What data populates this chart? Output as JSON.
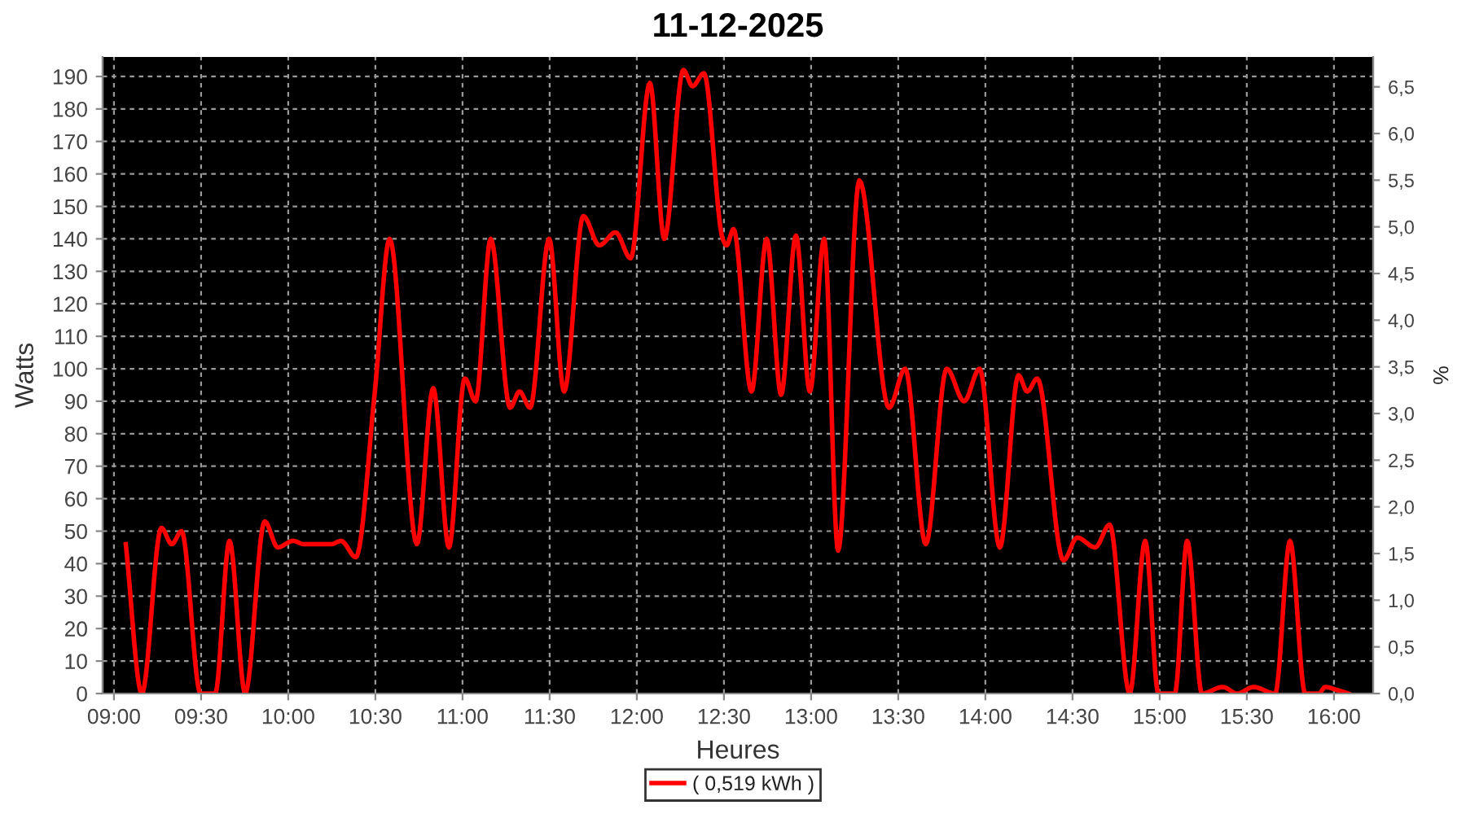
{
  "chart_data": {
    "type": "line",
    "title": "11-12-2025",
    "xlabel": "Heures",
    "ylabel": "Watts",
    "y2label": "%",
    "x": [
      9.068,
      9.16,
      9.272,
      9.332,
      9.388,
      9.497,
      9.581,
      9.663,
      9.753,
      9.865,
      9.94,
      10.028,
      10.09,
      10.247,
      10.303,
      10.388,
      10.497,
      10.582,
      10.738,
      10.832,
      10.922,
      11.013,
      11.075,
      11.162,
      11.273,
      11.327,
      11.388,
      11.497,
      11.583,
      11.693,
      11.785,
      11.878,
      11.965,
      12.075,
      12.158,
      12.267,
      12.32,
      12.385,
      12.493,
      12.515,
      12.555,
      12.658,
      12.745,
      12.828,
      12.913,
      12.993,
      13.075,
      13.155,
      13.277,
      13.447,
      13.54,
      13.658,
      13.778,
      13.878,
      13.967,
      14.083,
      14.19,
      14.24,
      14.298,
      14.448,
      14.527,
      14.63,
      14.713,
      14.828,
      14.917,
      14.993,
      15.087,
      15.158,
      15.243,
      15.362,
      15.445,
      15.538,
      15.663,
      15.748,
      15.835,
      15.913,
      15.95,
      16.022,
      16.083
    ],
    "series": [
      {
        "name": "( 0,519 kWh )",
        "color": "#ff0000",
        "values": [
          46,
          0,
          51,
          46,
          50,
          0,
          0,
          47,
          0,
          53,
          45,
          47,
          46,
          46,
          47,
          42,
          93,
          140,
          46,
          94,
          45,
          97,
          90,
          140,
          88,
          93,
          88,
          140,
          93,
          147,
          138,
          142,
          134,
          188,
          140,
          192,
          187,
          191,
          140,
          138,
          143,
          93,
          140,
          92,
          141,
          93,
          140,
          44,
          158,
          88,
          100,
          46,
          100,
          90,
          100,
          45,
          98,
          93,
          97,
          41,
          48,
          45,
          52,
          0,
          47,
          0,
          0,
          47,
          0,
          2,
          0,
          2,
          0,
          47,
          0,
          0,
          2,
          1,
          0
        ]
      }
    ],
    "xlim": [
      8.935,
      16.225
    ],
    "xticks": [
      {
        "value": 9,
        "label": "09:00"
      },
      {
        "value": 9.5,
        "label": "09:30"
      },
      {
        "value": 10,
        "label": "10:00"
      },
      {
        "value": 10.5,
        "label": "10:30"
      },
      {
        "value": 11,
        "label": "11:00"
      },
      {
        "value": 11.5,
        "label": "11:30"
      },
      {
        "value": 12,
        "label": "12:00"
      },
      {
        "value": 12.5,
        "label": "12:30"
      },
      {
        "value": 13,
        "label": "13:00"
      },
      {
        "value": 13.5,
        "label": "13:30"
      },
      {
        "value": 14,
        "label": "14:00"
      },
      {
        "value": 14.5,
        "label": "14:30"
      },
      {
        "value": 15,
        "label": "15:00"
      },
      {
        "value": 15.5,
        "label": "15:30"
      },
      {
        "value": 16,
        "label": "16:00"
      }
    ],
    "ylim": [
      0,
      196
    ],
    "yticks": [
      0,
      10,
      20,
      30,
      40,
      50,
      60,
      70,
      80,
      90,
      100,
      110,
      120,
      130,
      140,
      150,
      160,
      170,
      180,
      190
    ],
    "y2lim": [
      0,
      6.82
    ],
    "y2ticks": [
      {
        "value": 0,
        "label": "0,0"
      },
      {
        "value": 0.5,
        "label": "0,5"
      },
      {
        "value": 1,
        "label": "1,0"
      },
      {
        "value": 1.5,
        "label": "1,5"
      },
      {
        "value": 2,
        "label": "2,0"
      },
      {
        "value": 2.5,
        "label": "2,5"
      },
      {
        "value": 3,
        "label": "3,0"
      },
      {
        "value": 3.5,
        "label": "3,5"
      },
      {
        "value": 4,
        "label": "4,0"
      },
      {
        "value": 4.5,
        "label": "4,5"
      },
      {
        "value": 5,
        "label": "5,0"
      },
      {
        "value": 5.5,
        "label": "5,5"
      },
      {
        "value": 6,
        "label": "6,0"
      },
      {
        "value": 6.5,
        "label": "6,5"
      }
    ],
    "grid": true,
    "legend": "bottom",
    "line_style": "solid"
  }
}
